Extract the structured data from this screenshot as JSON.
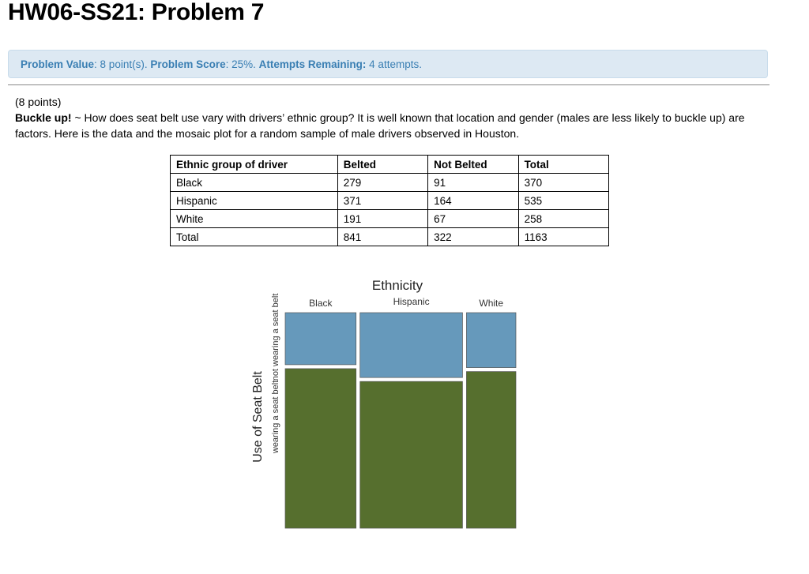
{
  "header": {
    "title": "HW06-SS21: Problem 7"
  },
  "info_bar": {
    "value_label": "Problem Value",
    "value_text": ": 8 point(s). ",
    "score_label": "Problem Score",
    "score_text": ": 25%. ",
    "attempts_label": "Attempts Remaining:",
    "attempts_text": " 4 attempts."
  },
  "problem": {
    "points": "(8 points)",
    "title": "Buckle up!",
    "body": " ~ How does seat belt use vary with drivers’ ethnic group? It is well known that location and gender (males are less likely to buckle up) are factors. Here is the data and the mosaic plot for a random sample of male drivers observed in Houston."
  },
  "table": {
    "headers": [
      "Ethnic group of driver",
      "Belted",
      "Not Belted",
      "Total"
    ],
    "rows": [
      [
        "Black",
        "279",
        "91",
        "370"
      ],
      [
        "Hispanic",
        "371",
        "164",
        "535"
      ],
      [
        "White",
        "191",
        "67",
        "258"
      ],
      [
        "Total",
        "841",
        "322",
        "1163"
      ]
    ]
  },
  "colors": {
    "belted": "#566f2e",
    "not_belted": "#6699bb"
  },
  "chart_data": {
    "type": "mosaic",
    "title": "Ethnicity",
    "ylabel": "Use of Seat Belt",
    "categories": [
      "Black",
      "Hispanic",
      "White"
    ],
    "category_totals": [
      370,
      535,
      258
    ],
    "series": [
      {
        "name": "not wearing a seat belt",
        "values": [
          91,
          164,
          67
        ]
      },
      {
        "name": "wearing a seat belt",
        "values": [
          279,
          371,
          191
        ]
      }
    ]
  }
}
